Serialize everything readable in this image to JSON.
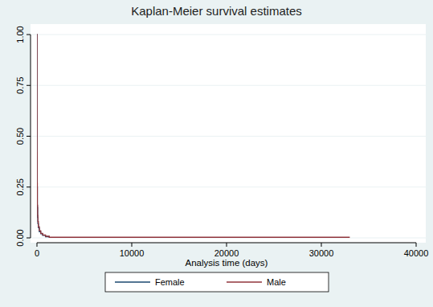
{
  "chart_data": {
    "type": "line",
    "title": "Kaplan-Meier survival estimates",
    "x_label": "Analysis time (days)",
    "x": [
      0,
      5,
      10,
      20,
      40,
      70,
      100,
      150,
      250,
      400,
      600,
      900,
      1300,
      33000
    ],
    "series": [
      {
        "name": "Female",
        "color": "#1a476f",
        "line_style": "step",
        "values": [
          1,
          0.6,
          0.4,
          0.25,
          0.15,
          0.1,
          0.07,
          0.05,
          0.03,
          0.02,
          0.012,
          0.006,
          0,
          null
        ]
      },
      {
        "name": "Male",
        "color": "#90353b",
        "line_style": "step",
        "values": [
          1,
          0.65,
          0.42,
          0.27,
          0.16,
          0.11,
          0.08,
          0.055,
          0.035,
          0.022,
          0.014,
          0.008,
          0.003,
          0.003
        ]
      }
    ],
    "xlim": [
      0,
      40000
    ],
    "xticks": [
      0,
      10000,
      20000,
      30000,
      40000
    ],
    "ylim": [
      0,
      1
    ],
    "yticks": [
      {
        "value": 0,
        "label": "0.00"
      },
      {
        "value": 0.25,
        "label": "0.25"
      },
      {
        "value": 0.5,
        "label": "0.50"
      },
      {
        "value": 0.75,
        "label": "0.75"
      },
      {
        "value": 1,
        "label": "1.00"
      }
    ],
    "grid": true,
    "legend": "bottom"
  }
}
